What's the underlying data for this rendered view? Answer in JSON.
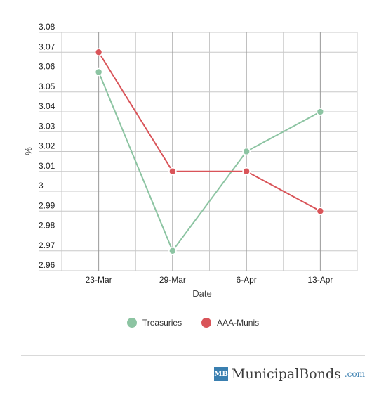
{
  "chart_data": {
    "type": "line",
    "categories": [
      "23-Mar",
      "29-Mar",
      "6-Apr",
      "13-Apr"
    ],
    "series": [
      {
        "name": "Treasuries",
        "values": [
          3.06,
          2.97,
          3.02,
          3.04
        ],
        "color": "#8cc4a2"
      },
      {
        "name": "AAA-Munis",
        "values": [
          3.07,
          3.01,
          3.01,
          2.99
        ],
        "color": "#d95459"
      }
    ],
    "xlabel": "Date",
    "ylabel": "%",
    "ylim": [
      2.96,
      3.08
    ],
    "yticks": [
      "2.96",
      "2.97",
      "2.98",
      "2.99",
      "3",
      "3.01",
      "3.02",
      "3.03",
      "3.04",
      "3.05",
      "3.06",
      "3.07",
      "3.08"
    ],
    "grid": true,
    "legend_position": "bottom"
  },
  "branding": {
    "badge": "MB",
    "name": "MunicipalBonds",
    "tld": ".com"
  }
}
